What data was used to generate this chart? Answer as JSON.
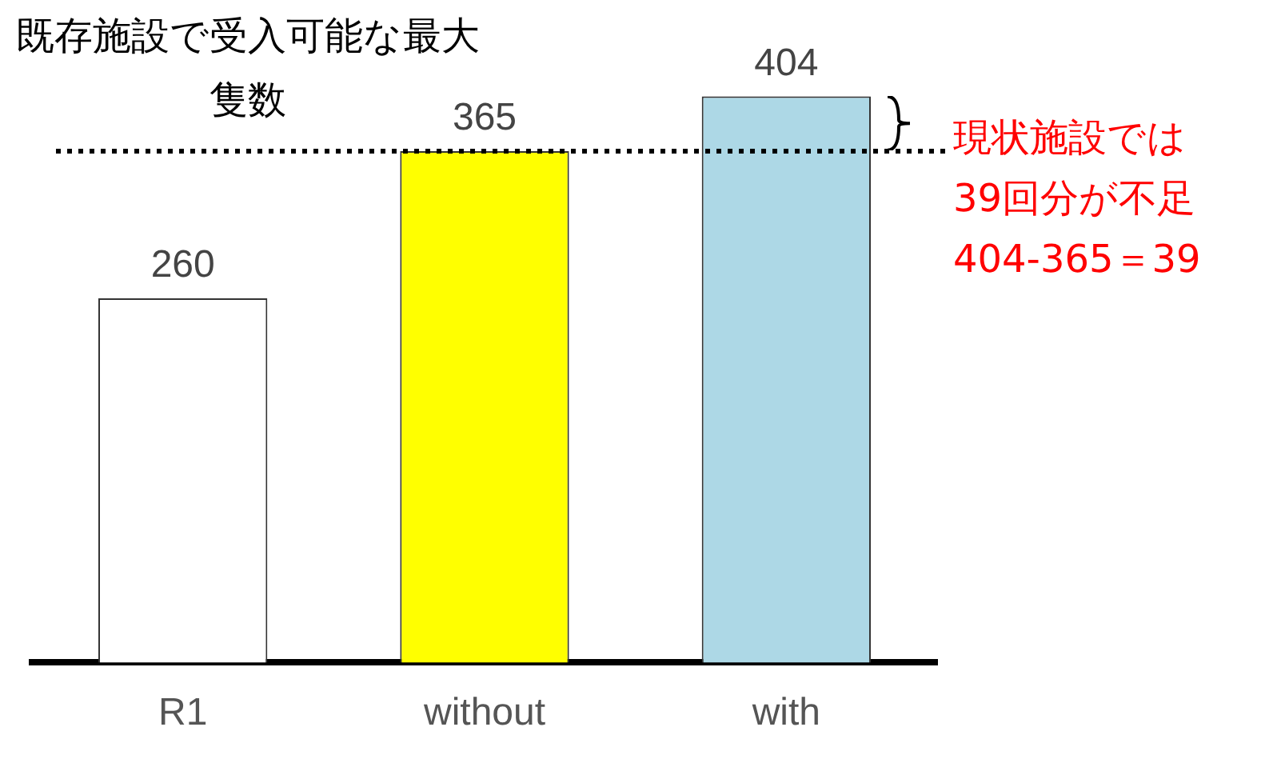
{
  "chart_data": {
    "type": "bar",
    "categories": [
      "R1",
      "without",
      "with"
    ],
    "values": [
      260,
      365,
      404
    ],
    "colors": [
      "#ffffff",
      "#ffff00",
      "#add8e6"
    ],
    "data_labels": true,
    "grid": false,
    "legend": false,
    "tick_labels": "x",
    "ref_lines": [
      {
        "axis": "y",
        "value": 365,
        "label": "既存施設で受入可能な最大隻数",
        "color": "#000000",
        "line_style": "dotted"
      }
    ],
    "annotations": [
      "現状施設では\n39回分が不足\n404-365＝39"
    ]
  }
}
